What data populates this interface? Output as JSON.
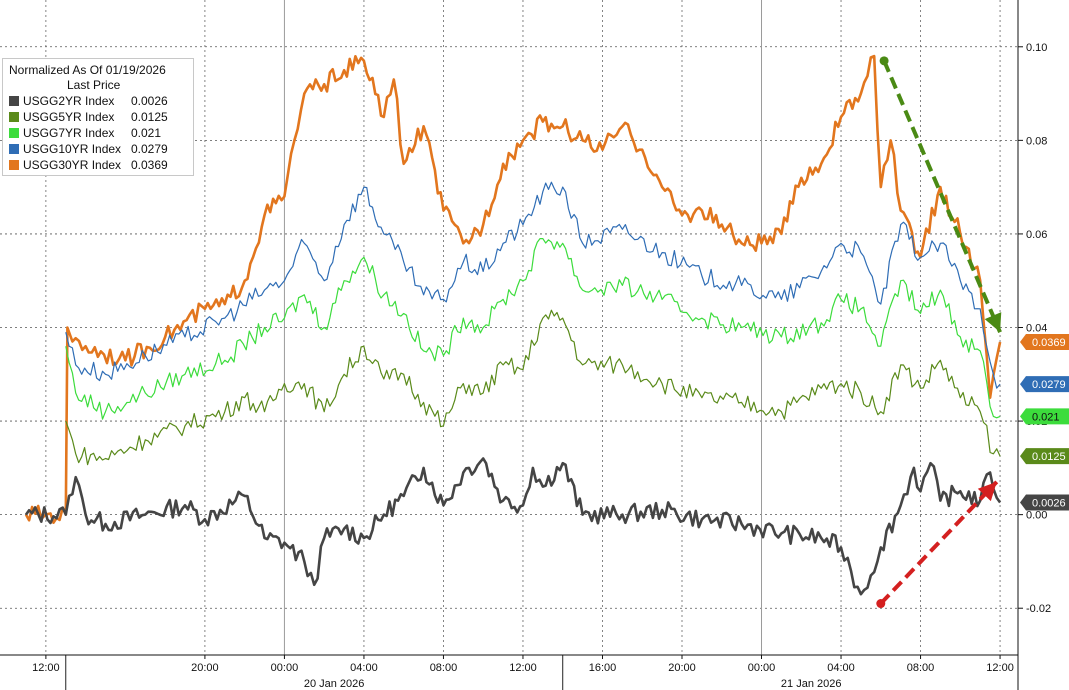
{
  "chart_data": {
    "type": "line",
    "title": "",
    "xlabel": "",
    "ylabel": "",
    "ylim": [
      -0.03,
      0.11
    ],
    "y_ticks": [
      -0.02,
      0.0,
      0.02,
      0.04,
      0.06,
      0.08,
      0.1
    ],
    "y_tick_labels": [
      "-0.02",
      "0.00",
      "0.02",
      "0.04",
      "0.06",
      "0.08",
      "0.10"
    ],
    "x_range_hours": [
      "2026-01-19 11:00",
      "2026-01-21 12:30"
    ],
    "x_ticks": [
      {
        "time": "2026-01-19 12:00",
        "label": "12:00"
      },
      {
        "time": "2026-01-19 20:00",
        "label": "20:00"
      },
      {
        "time": "2026-01-20 00:00",
        "label": "00:00"
      },
      {
        "time": "2026-01-20 04:00",
        "label": "04:00"
      },
      {
        "time": "2026-01-20 08:00",
        "label": "08:00"
      },
      {
        "time": "2026-01-20 12:00",
        "label": "12:00"
      },
      {
        "time": "2026-01-20 16:00",
        "label": "16:00"
      },
      {
        "time": "2026-01-20 20:00",
        "label": "20:00"
      },
      {
        "time": "2026-01-21 00:00",
        "label": "00:00"
      },
      {
        "time": "2026-01-21 04:00",
        "label": "04:00"
      },
      {
        "time": "2026-01-21 08:00",
        "label": "08:00"
      },
      {
        "time": "2026-01-21 12:00",
        "label": "12:00"
      }
    ],
    "date_labels": [
      {
        "time": "2026-01-20 02:30",
        "label": "20 Jan 2026"
      },
      {
        "time": "2026-01-21 02:30",
        "label": "21 Jan 2026"
      }
    ],
    "legend": {
      "title": "Normalized As Of 01/19/2026",
      "subtitle": "Last Price",
      "placement": "top-left"
    },
    "series": [
      {
        "name": "USGG2YR Index",
        "last": "0.0026",
        "color": "#454545",
        "points": [
          [
            "2026-01-19 11:00",
            0.0
          ],
          [
            "2026-01-19 13:00",
            0.0
          ],
          [
            "2026-01-19 13:10",
            0.004
          ],
          [
            "2026-01-19 13:30",
            0.008
          ],
          [
            "2026-01-19 14:00",
            0.0
          ],
          [
            "2026-01-19 15:00",
            -0.002
          ],
          [
            "2026-01-19 17:00",
            0.0
          ],
          [
            "2026-01-19 19:00",
            0.002
          ],
          [
            "2026-01-19 20:00",
            -0.001
          ],
          [
            "2026-01-19 22:00",
            0.004
          ],
          [
            "2026-01-19 23:00",
            -0.005
          ],
          [
            "2026-01-20 00:00",
            -0.006
          ],
          [
            "2026-01-20 01:00",
            -0.01
          ],
          [
            "2026-01-20 01:30",
            -0.015
          ],
          [
            "2026-01-20 02:00",
            -0.005
          ],
          [
            "2026-01-20 03:00",
            -0.003
          ],
          [
            "2026-01-20 04:00",
            -0.005
          ],
          [
            "2026-01-20 05:00",
            0.0
          ],
          [
            "2026-01-20 06:00",
            0.004
          ],
          [
            "2026-01-20 07:00",
            0.01
          ],
          [
            "2026-01-20 08:00",
            0.002
          ],
          [
            "2026-01-20 09:00",
            0.009
          ],
          [
            "2026-01-20 10:00",
            0.012
          ],
          [
            "2026-01-20 11:00",
            0.003
          ],
          [
            "2026-01-20 12:00",
            0.002
          ],
          [
            "2026-01-20 12:30",
            0.01
          ],
          [
            "2026-01-20 13:00",
            0.006
          ],
          [
            "2026-01-20 14:00",
            0.011
          ],
          [
            "2026-01-20 15:00",
            0.0
          ],
          [
            "2026-01-20 17:00",
            0.0
          ],
          [
            "2026-01-20 19:00",
            0.001
          ],
          [
            "2026-01-20 21:00",
            -0.001
          ],
          [
            "2026-01-20 23:00",
            -0.002
          ],
          [
            "2026-01-21 01:00",
            -0.004
          ],
          [
            "2026-01-21 03:00",
            -0.005
          ],
          [
            "2026-01-21 04:00",
            -0.007
          ],
          [
            "2026-01-21 04:30",
            -0.012
          ],
          [
            "2026-01-21 05:00",
            -0.017
          ],
          [
            "2026-01-21 05:30",
            -0.013
          ],
          [
            "2026-01-21 06:00",
            -0.007
          ],
          [
            "2026-01-21 07:00",
            0.002
          ],
          [
            "2026-01-21 07:40",
            0.01
          ],
          [
            "2026-01-21 08:00",
            0.005
          ],
          [
            "2026-01-21 08:30",
            0.011
          ],
          [
            "2026-01-21 09:00",
            0.003
          ],
          [
            "2026-01-21 10:00",
            0.005
          ],
          [
            "2026-01-21 11:00",
            0.003
          ],
          [
            "2026-01-21 11:30",
            0.009
          ],
          [
            "2026-01-21 12:00",
            0.0026
          ]
        ]
      },
      {
        "name": "USGG5YR Index",
        "last": "0.0125",
        "color": "#5a8a1a",
        "points": [
          [
            "2026-01-19 13:00",
            0.02
          ],
          [
            "2026-01-19 13:30",
            0.013
          ],
          [
            "2026-01-19 15:00",
            0.012
          ],
          [
            "2026-01-19 17:00",
            0.016
          ],
          [
            "2026-01-19 19:00",
            0.019
          ],
          [
            "2026-01-19 21:00",
            0.022
          ],
          [
            "2026-01-19 22:00",
            0.025
          ],
          [
            "2026-01-19 23:00",
            0.022
          ],
          [
            "2026-01-20 00:00",
            0.028
          ],
          [
            "2026-01-20 01:00",
            0.028
          ],
          [
            "2026-01-20 02:00",
            0.022
          ],
          [
            "2026-01-20 03:00",
            0.03
          ],
          [
            "2026-01-20 04:00",
            0.036
          ],
          [
            "2026-01-20 05:00",
            0.029
          ],
          [
            "2026-01-20 06:00",
            0.03
          ],
          [
            "2026-01-20 07:00",
            0.024
          ],
          [
            "2026-01-20 08:00",
            0.019
          ],
          [
            "2026-01-20 09:00",
            0.028
          ],
          [
            "2026-01-20 10:00",
            0.026
          ],
          [
            "2026-01-20 11:00",
            0.032
          ],
          [
            "2026-01-20 12:00",
            0.031
          ],
          [
            "2026-01-20 13:00",
            0.042
          ],
          [
            "2026-01-20 14:00",
            0.042
          ],
          [
            "2026-01-20 15:00",
            0.032
          ],
          [
            "2026-01-20 17:00",
            0.032
          ],
          [
            "2026-01-20 19:00",
            0.028
          ],
          [
            "2026-01-20 21:00",
            0.025
          ],
          [
            "2026-01-20 23:00",
            0.024
          ],
          [
            "2026-01-21 01:00",
            0.022
          ],
          [
            "2026-01-21 03:00",
            0.027
          ],
          [
            "2026-01-21 04:00",
            0.028
          ],
          [
            "2026-01-21 05:00",
            0.026
          ],
          [
            "2026-01-21 06:00",
            0.022
          ],
          [
            "2026-01-21 07:00",
            0.032
          ],
          [
            "2026-01-21 08:00",
            0.027
          ],
          [
            "2026-01-21 09:00",
            0.033
          ],
          [
            "2026-01-21 10:00",
            0.025
          ],
          [
            "2026-01-21 11:00",
            0.022
          ],
          [
            "2026-01-21 11:40",
            0.013
          ],
          [
            "2026-01-21 12:00",
            0.0125
          ]
        ]
      },
      {
        "name": "USGG7YR Index",
        "last": "0.021",
        "color": "#3cdc3c",
        "points": [
          [
            "2026-01-19 13:00",
            0.036
          ],
          [
            "2026-01-19 13:30",
            0.026
          ],
          [
            "2026-01-19 15:00",
            0.022
          ],
          [
            "2026-01-19 17:00",
            0.026
          ],
          [
            "2026-01-19 19:00",
            0.03
          ],
          [
            "2026-01-19 21:00",
            0.033
          ],
          [
            "2026-01-19 23:00",
            0.04
          ],
          [
            "2026-01-20 00:00",
            0.042
          ],
          [
            "2026-01-20 01:00",
            0.047
          ],
          [
            "2026-01-20 02:00",
            0.04
          ],
          [
            "2026-01-20 03:00",
            0.05
          ],
          [
            "2026-01-20 04:00",
            0.055
          ],
          [
            "2026-01-20 05:00",
            0.047
          ],
          [
            "2026-01-20 06:00",
            0.043
          ],
          [
            "2026-01-20 07:00",
            0.035
          ],
          [
            "2026-01-20 08:00",
            0.034
          ],
          [
            "2026-01-20 09:00",
            0.042
          ],
          [
            "2026-01-20 10:00",
            0.04
          ],
          [
            "2026-01-20 11:00",
            0.046
          ],
          [
            "2026-01-20 12:00",
            0.05
          ],
          [
            "2026-01-20 13:00",
            0.059
          ],
          [
            "2026-01-20 14:00",
            0.058
          ],
          [
            "2026-01-20 15:00",
            0.048
          ],
          [
            "2026-01-20 17:00",
            0.049
          ],
          [
            "2026-01-20 19:00",
            0.046
          ],
          [
            "2026-01-20 21:00",
            0.042
          ],
          [
            "2026-01-20 23:00",
            0.04
          ],
          [
            "2026-01-21 01:00",
            0.038
          ],
          [
            "2026-01-21 03:00",
            0.041
          ],
          [
            "2026-01-21 04:00",
            0.046
          ],
          [
            "2026-01-21 05:00",
            0.044
          ],
          [
            "2026-01-21 06:00",
            0.036
          ],
          [
            "2026-01-21 07:00",
            0.05
          ],
          [
            "2026-01-21 08:00",
            0.043
          ],
          [
            "2026-01-21 09:00",
            0.048
          ],
          [
            "2026-01-21 10:00",
            0.038
          ],
          [
            "2026-01-21 11:00",
            0.035
          ],
          [
            "2026-01-21 11:40",
            0.021
          ],
          [
            "2026-01-21 12:00",
            0.021
          ]
        ]
      },
      {
        "name": "USGG10YR Index",
        "last": "0.0279",
        "color": "#2f6db5",
        "points": [
          [
            "2026-01-19 13:00",
            0.039
          ],
          [
            "2026-01-19 13:30",
            0.032
          ],
          [
            "2026-01-19 15:00",
            0.03
          ],
          [
            "2026-01-19 17:00",
            0.034
          ],
          [
            "2026-01-19 19:00",
            0.038
          ],
          [
            "2026-01-19 21:00",
            0.042
          ],
          [
            "2026-01-19 23:00",
            0.048
          ],
          [
            "2026-01-20 00:00",
            0.05
          ],
          [
            "2026-01-20 01:00",
            0.058
          ],
          [
            "2026-01-20 02:00",
            0.05
          ],
          [
            "2026-01-20 03:00",
            0.062
          ],
          [
            "2026-01-20 04:00",
            0.07
          ],
          [
            "2026-01-20 05:00",
            0.06
          ],
          [
            "2026-01-20 06:00",
            0.054
          ],
          [
            "2026-01-20 07:00",
            0.047
          ],
          [
            "2026-01-20 08:00",
            0.046
          ],
          [
            "2026-01-20 09:00",
            0.054
          ],
          [
            "2026-01-20 10:00",
            0.052
          ],
          [
            "2026-01-20 11:00",
            0.058
          ],
          [
            "2026-01-20 12:00",
            0.062
          ],
          [
            "2026-01-20 13:00",
            0.069
          ],
          [
            "2026-01-20 14:00",
            0.07
          ],
          [
            "2026-01-20 15:00",
            0.058
          ],
          [
            "2026-01-20 17:00",
            0.061
          ],
          [
            "2026-01-20 19:00",
            0.056
          ],
          [
            "2026-01-20 21:00",
            0.051
          ],
          [
            "2026-01-20 23:00",
            0.049
          ],
          [
            "2026-01-21 01:00",
            0.046
          ],
          [
            "2026-01-21 03:00",
            0.052
          ],
          [
            "2026-01-21 04:00",
            0.058
          ],
          [
            "2026-01-21 05:00",
            0.056
          ],
          [
            "2026-01-21 06:00",
            0.045
          ],
          [
            "2026-01-21 07:00",
            0.062
          ],
          [
            "2026-01-21 08:00",
            0.055
          ],
          [
            "2026-01-21 09:00",
            0.058
          ],
          [
            "2026-01-21 10:00",
            0.05
          ],
          [
            "2026-01-21 11:00",
            0.044
          ],
          [
            "2026-01-21 11:40",
            0.03
          ],
          [
            "2026-01-21 12:00",
            0.0279
          ]
        ]
      },
      {
        "name": "USGG30YR Index",
        "last": "0.0369",
        "color": "#e2761e",
        "points": [
          [
            "2026-01-19 11:00",
            0.0
          ],
          [
            "2026-01-19 13:00",
            0.0
          ],
          [
            "2026-01-19 13:05",
            0.04
          ],
          [
            "2026-01-19 13:20",
            0.037
          ],
          [
            "2026-01-19 14:00",
            0.036
          ],
          [
            "2026-01-19 16:00",
            0.033
          ],
          [
            "2026-01-19 18:00",
            0.038
          ],
          [
            "2026-01-19 20:00",
            0.044
          ],
          [
            "2026-01-19 21:00",
            0.045
          ],
          [
            "2026-01-19 22:00",
            0.05
          ],
          [
            "2026-01-19 23:00",
            0.064
          ],
          [
            "2026-01-20 00:00",
            0.068
          ],
          [
            "2026-01-20 00:30",
            0.08
          ],
          [
            "2026-01-20 01:00",
            0.09
          ],
          [
            "2026-01-20 02:00",
            0.092
          ],
          [
            "2026-01-20 03:00",
            0.095
          ],
          [
            "2026-01-20 04:00",
            0.097
          ],
          [
            "2026-01-20 05:00",
            0.085
          ],
          [
            "2026-01-20 05:30",
            0.093
          ],
          [
            "2026-01-20 06:00",
            0.075
          ],
          [
            "2026-01-20 07:00",
            0.083
          ],
          [
            "2026-01-20 08:00",
            0.065
          ],
          [
            "2026-01-20 09:00",
            0.058
          ],
          [
            "2026-01-20 10:00",
            0.062
          ],
          [
            "2026-01-20 11:00",
            0.075
          ],
          [
            "2026-01-20 12:00",
            0.08
          ],
          [
            "2026-01-20 13:00",
            0.084
          ],
          [
            "2026-01-20 14:00",
            0.083
          ],
          [
            "2026-01-20 15:00",
            0.08
          ],
          [
            "2026-01-20 16:00",
            0.078
          ],
          [
            "2026-01-20 17:00",
            0.083
          ],
          [
            "2026-01-20 18:00",
            0.078
          ],
          [
            "2026-01-20 19:00",
            0.07
          ],
          [
            "2026-01-20 20:00",
            0.064
          ],
          [
            "2026-01-20 21:00",
            0.065
          ],
          [
            "2026-01-20 22:00",
            0.062
          ],
          [
            "2026-01-20 23:00",
            0.058
          ],
          [
            "2026-01-21 00:00",
            0.058
          ],
          [
            "2026-01-21 01:00",
            0.06
          ],
          [
            "2026-01-21 02:00",
            0.072
          ],
          [
            "2026-01-21 03:00",
            0.075
          ],
          [
            "2026-01-21 04:00",
            0.085
          ],
          [
            "2026-01-21 05:00",
            0.09
          ],
          [
            "2026-01-21 05:40",
            0.098
          ],
          [
            "2026-01-21 06:00",
            0.07
          ],
          [
            "2026-01-21 06:30",
            0.08
          ],
          [
            "2026-01-21 07:00",
            0.065
          ],
          [
            "2026-01-21 08:00",
            0.055
          ],
          [
            "2026-01-21 09:00",
            0.07
          ],
          [
            "2026-01-21 10:00",
            0.06
          ],
          [
            "2026-01-21 11:00",
            0.05
          ],
          [
            "2026-01-21 11:30",
            0.025
          ],
          [
            "2026-01-21 12:00",
            0.0369
          ]
        ]
      }
    ],
    "annotations": [
      {
        "type": "arrow",
        "color": "#4a8a14",
        "from": [
          "2026-01-21 06:10",
          0.097
        ],
        "to": [
          "2026-01-21 12:00",
          0.039
        ]
      },
      {
        "type": "arrow",
        "color": "#d42020",
        "from": [
          "2026-01-21 06:00",
          -0.019
        ],
        "to": [
          "2026-01-21 11:50",
          0.007
        ]
      }
    ]
  }
}
